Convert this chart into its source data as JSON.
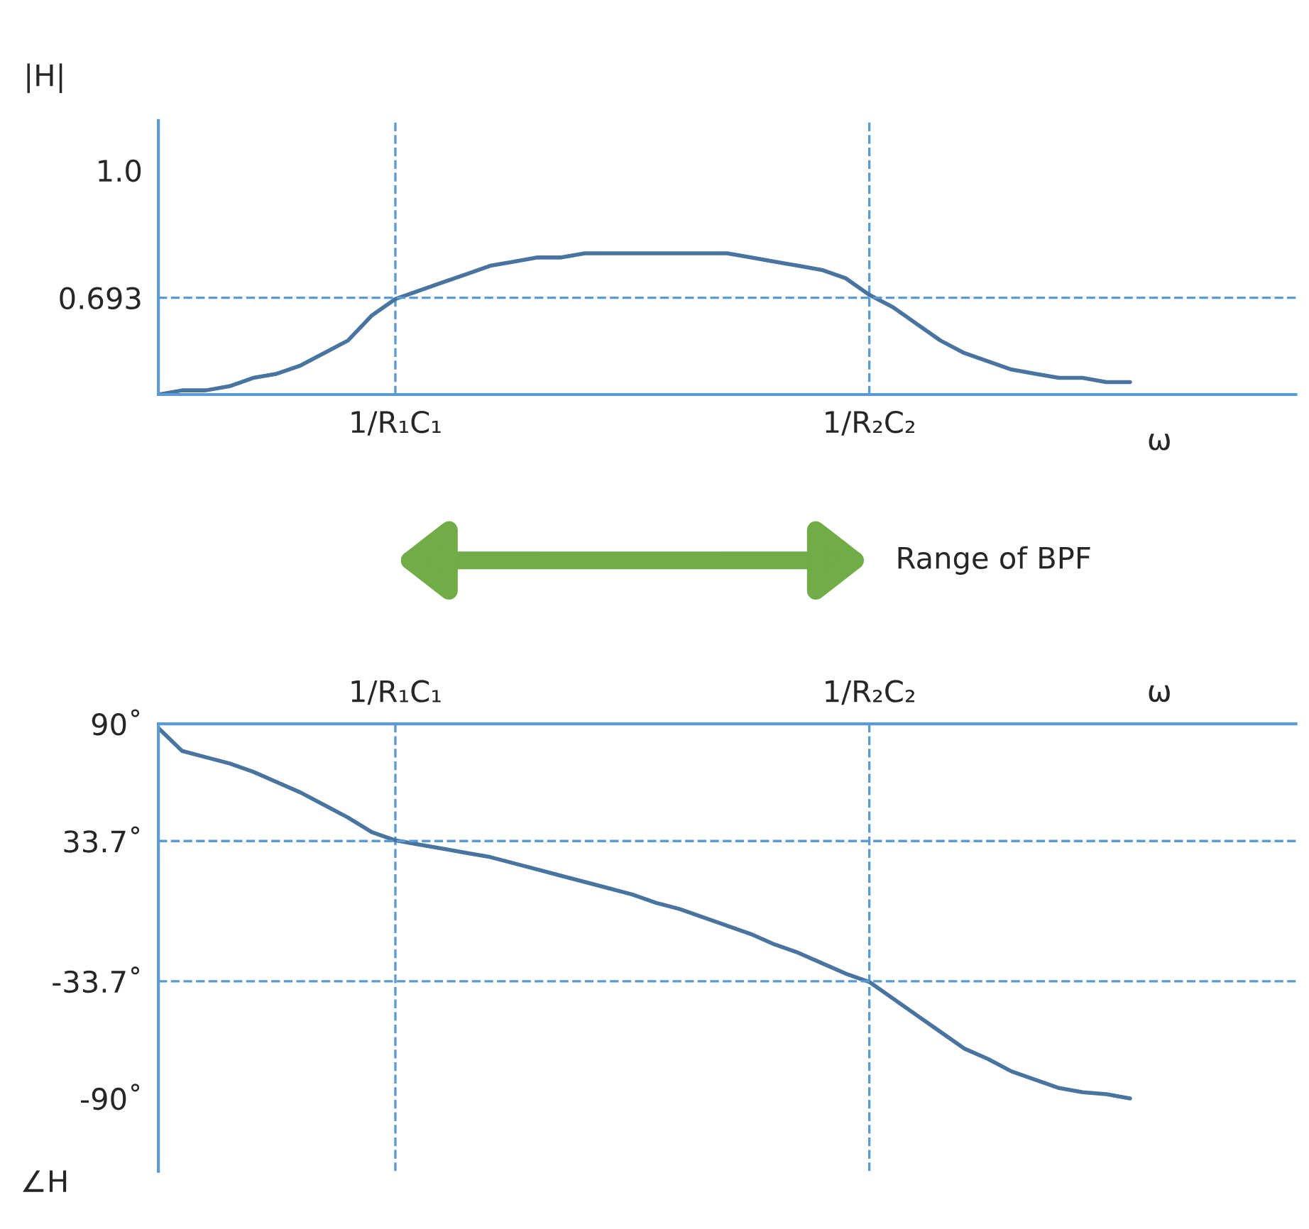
{
  "chart_data": [
    {
      "type": "line",
      "ylabel": "|H|",
      "xlabel": "ω",
      "categories": [
        null,
        null,
        null,
        null,
        null,
        null,
        null,
        null,
        null,
        null,
        "1/R₁C₁",
        null,
        null,
        null,
        null,
        null,
        null,
        null,
        null,
        null,
        null,
        null,
        null,
        null,
        null,
        null,
        null,
        null,
        null,
        null,
        "1/R₂C₂",
        null,
        null,
        null,
        null,
        null,
        null,
        null,
        null,
        null,
        null,
        null
      ],
      "series": [
        {
          "color": "#4a74a0",
          "values": [
            0.46,
            0.47,
            0.47,
            0.48,
            0.5,
            0.51,
            0.53,
            0.56,
            0.59,
            0.65,
            0.69,
            0.71,
            0.73,
            0.75,
            0.77,
            0.78,
            0.79,
            0.79,
            0.8,
            0.8,
            0.8,
            0.8,
            0.8,
            0.8,
            0.8,
            0.79,
            0.78,
            0.77,
            0.76,
            0.74,
            0.7,
            0.67,
            0.63,
            0.59,
            0.56,
            0.54,
            0.52,
            0.51,
            0.5,
            0.5,
            0.49,
            0.49
          ]
        }
      ],
      "ylim": [
        0.46,
        1.12
      ],
      "yticks": [
        {
          "value": 1,
          "label": "1.0"
        },
        0.693
      ],
      "ref_lines": [
        {
          "axis": "y",
          "value": 0.693,
          "color": "#5b9bd5",
          "line_style": "dashed"
        }
      ],
      "grid": "x",
      "marker": "none",
      "line_style": "solid",
      "annotations": [
        "Range of BPF"
      ]
    },
    {
      "type": "line",
      "ylabel": "∠H",
      "xlabel": "ω",
      "categories": [
        null,
        null,
        null,
        null,
        null,
        null,
        null,
        null,
        null,
        null,
        "1/R₁C₁",
        null,
        null,
        null,
        null,
        null,
        null,
        null,
        null,
        null,
        null,
        null,
        null,
        null,
        null,
        null,
        null,
        null,
        null,
        null,
        "1/R₂C₂",
        null,
        null,
        null,
        null,
        null,
        null,
        null,
        null,
        null,
        null,
        null
      ],
      "series": [
        {
          "color": "#4a74a0",
          "values": [
            88,
            77,
            74,
            71,
            67,
            62,
            57,
            51,
            45,
            38,
            34,
            32,
            30,
            28,
            26,
            23,
            20,
            17,
            14,
            11,
            8,
            4,
            1,
            -3,
            -7,
            -11,
            -16,
            -20,
            -25,
            -30,
            -34,
            -42,
            -50,
            -58,
            -66,
            -71,
            -77,
            -81,
            -85,
            -87,
            -88,
            -90
          ]
        }
      ],
      "ylim": [
        -125,
        90
      ],
      "yticks": [
        {
          "value": 90,
          "label": "90˚"
        },
        {
          "value": 33.7,
          "label": "33.7˚"
        },
        {
          "value": -33.7,
          "label": "-33.7˚"
        },
        {
          "value": -90,
          "label": "-90˚"
        }
      ],
      "ref_lines": [
        {
          "axis": "y",
          "value": 33.7,
          "color": "#5b9bd5",
          "line_style": "dashed"
        },
        {
          "axis": "y",
          "value": -33.7,
          "color": "#5b9bd5",
          "line_style": "dashed"
        }
      ],
      "grid": "x",
      "marker": "none",
      "line_style": "solid"
    }
  ]
}
